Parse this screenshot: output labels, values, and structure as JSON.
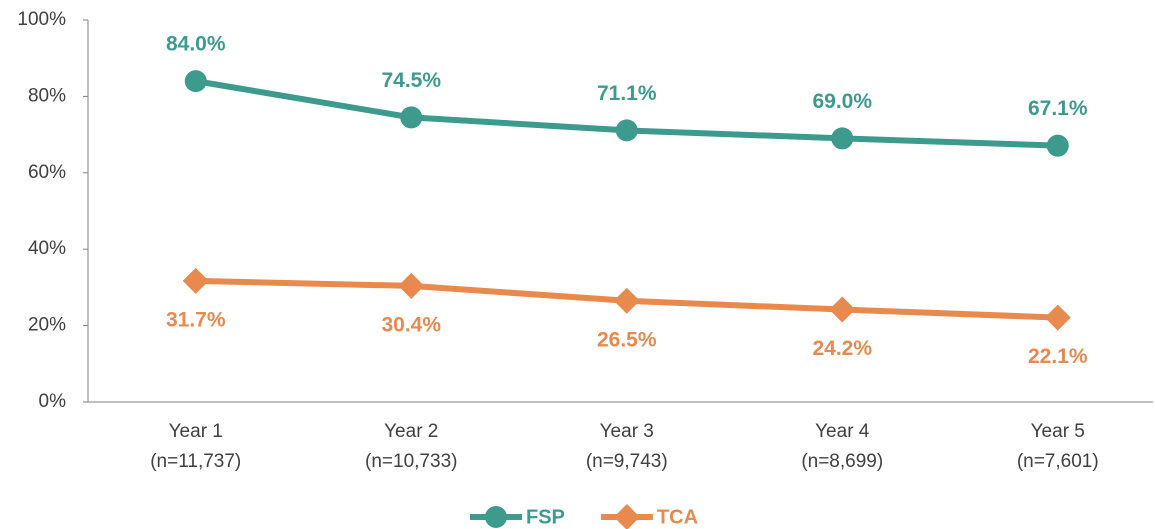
{
  "chart_data": {
    "type": "line",
    "categories": [
      [
        "Year 1",
        "(n=11,737)"
      ],
      [
        "Year 2",
        "(n=10,733)"
      ],
      [
        "Year 3",
        "(n=9,743)"
      ],
      [
        "Year 4",
        "(n=8,699)"
      ],
      [
        "Year 5",
        "(n=7,601)"
      ]
    ],
    "series": [
      {
        "name": "FSP",
        "color": "#3d9b8e",
        "marker": "circle",
        "values": [
          84.0,
          74.5,
          71.1,
          69.0,
          67.1
        ],
        "value_labels": [
          "84.0%",
          "74.5%",
          "71.1%",
          "69.0%",
          "67.1%"
        ]
      },
      {
        "name": "TCA",
        "color": "#e8894e",
        "marker": "diamond",
        "values": [
          31.7,
          30.4,
          26.5,
          24.2,
          22.1
        ],
        "value_labels": [
          "31.7%",
          "30.4%",
          "26.5%",
          "24.2%",
          "22.1%"
        ]
      }
    ],
    "ylim": [
      0,
      100
    ],
    "yticks": [
      {
        "value": 0,
        "label": "0%"
      },
      {
        "value": 20,
        "label": "20%"
      },
      {
        "value": 40,
        "label": "40%"
      },
      {
        "value": 60,
        "label": "60%"
      },
      {
        "value": 80,
        "label": "80%"
      },
      {
        "value": 100,
        "label": "100%"
      }
    ],
    "grid": false,
    "legend": "bottom"
  }
}
